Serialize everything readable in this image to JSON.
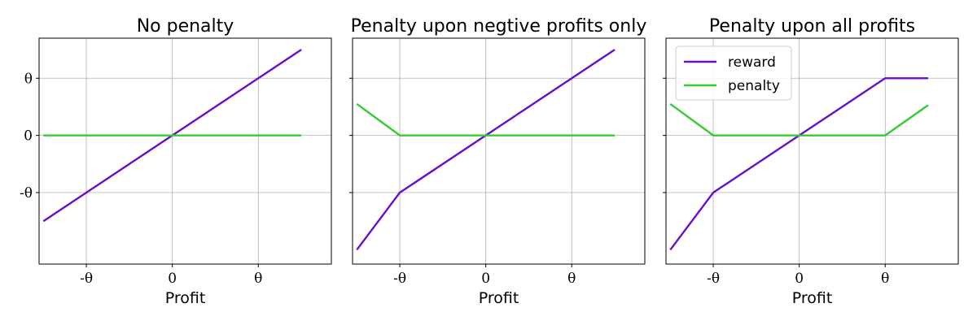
{
  "chart_data": [
    {
      "type": "line",
      "title": "No penalty",
      "xlabel": "Profit",
      "ylabel": "",
      "xlim": [
        -1.55,
        1.85
      ],
      "ylim": [
        -2.25,
        1.7
      ],
      "xticks": [
        {
          "value": -1,
          "label": "-θ"
        },
        {
          "value": 0,
          "label": "0"
        },
        {
          "value": 1,
          "label": "θ"
        }
      ],
      "yticks": [
        {
          "value": -1,
          "label": "-θ"
        },
        {
          "value": 0,
          "label": "0"
        },
        {
          "value": 1,
          "label": "θ"
        }
      ],
      "show_ytick_labels": true,
      "grid": true,
      "series": [
        {
          "key": "reward",
          "color": "#6a0dcc",
          "x": [
            -1.5,
            0,
            1.5
          ],
          "y": [
            -1.5,
            0,
            1.5
          ]
        },
        {
          "key": "penalty",
          "color": "#33cc33",
          "x": [
            -1.5,
            1.5
          ],
          "y": [
            0,
            0
          ]
        }
      ]
    },
    {
      "type": "line",
      "title": "Penalty upon negtive profits only",
      "xlabel": "Profit",
      "ylabel": "",
      "xlim": [
        -1.55,
        1.85
      ],
      "ylim": [
        -2.25,
        1.7
      ],
      "xticks": [
        {
          "value": -1,
          "label": "-θ"
        },
        {
          "value": 0,
          "label": "0"
        },
        {
          "value": 1,
          "label": "θ"
        }
      ],
      "yticks": [
        {
          "value": -1,
          "label": "-θ"
        },
        {
          "value": 0,
          "label": "0"
        },
        {
          "value": 1,
          "label": "θ"
        }
      ],
      "show_ytick_labels": false,
      "grid": true,
      "series": [
        {
          "key": "reward",
          "color": "#6a0dcc",
          "x": [
            -1.5,
            -1,
            0,
            1.5
          ],
          "y": [
            -2,
            -1,
            0,
            1.5
          ]
        },
        {
          "key": "penalty",
          "color": "#33cc33",
          "x": [
            -1.5,
            -1,
            1.5
          ],
          "y": [
            0.55,
            0,
            0
          ]
        }
      ]
    },
    {
      "type": "line",
      "title": "Penalty upon all profits",
      "xlabel": "Profit",
      "ylabel": "",
      "xlim": [
        -1.55,
        1.85
      ],
      "ylim": [
        -2.25,
        1.7
      ],
      "xticks": [
        {
          "value": -1,
          "label": "-θ"
        },
        {
          "value": 0,
          "label": "0"
        },
        {
          "value": 1,
          "label": "θ"
        }
      ],
      "yticks": [
        {
          "value": -1,
          "label": "-θ"
        },
        {
          "value": 0,
          "label": "0"
        },
        {
          "value": 1,
          "label": "θ"
        }
      ],
      "show_ytick_labels": false,
      "grid": true,
      "legend": {
        "position": "top-left",
        "entries": [
          {
            "label": "reward",
            "color": "#6a0dcc"
          },
          {
            "label": "penalty",
            "color": "#33cc33"
          }
        ]
      },
      "series": [
        {
          "key": "reward",
          "color": "#6a0dcc",
          "x": [
            -1.5,
            -1,
            0,
            1,
            1.5
          ],
          "y": [
            -2,
            -1,
            0,
            1,
            1
          ]
        },
        {
          "key": "penalty",
          "color": "#33cc33",
          "x": [
            -1.5,
            -1,
            1,
            1.5
          ],
          "y": [
            0.55,
            0,
            0,
            0.53
          ]
        }
      ]
    }
  ]
}
